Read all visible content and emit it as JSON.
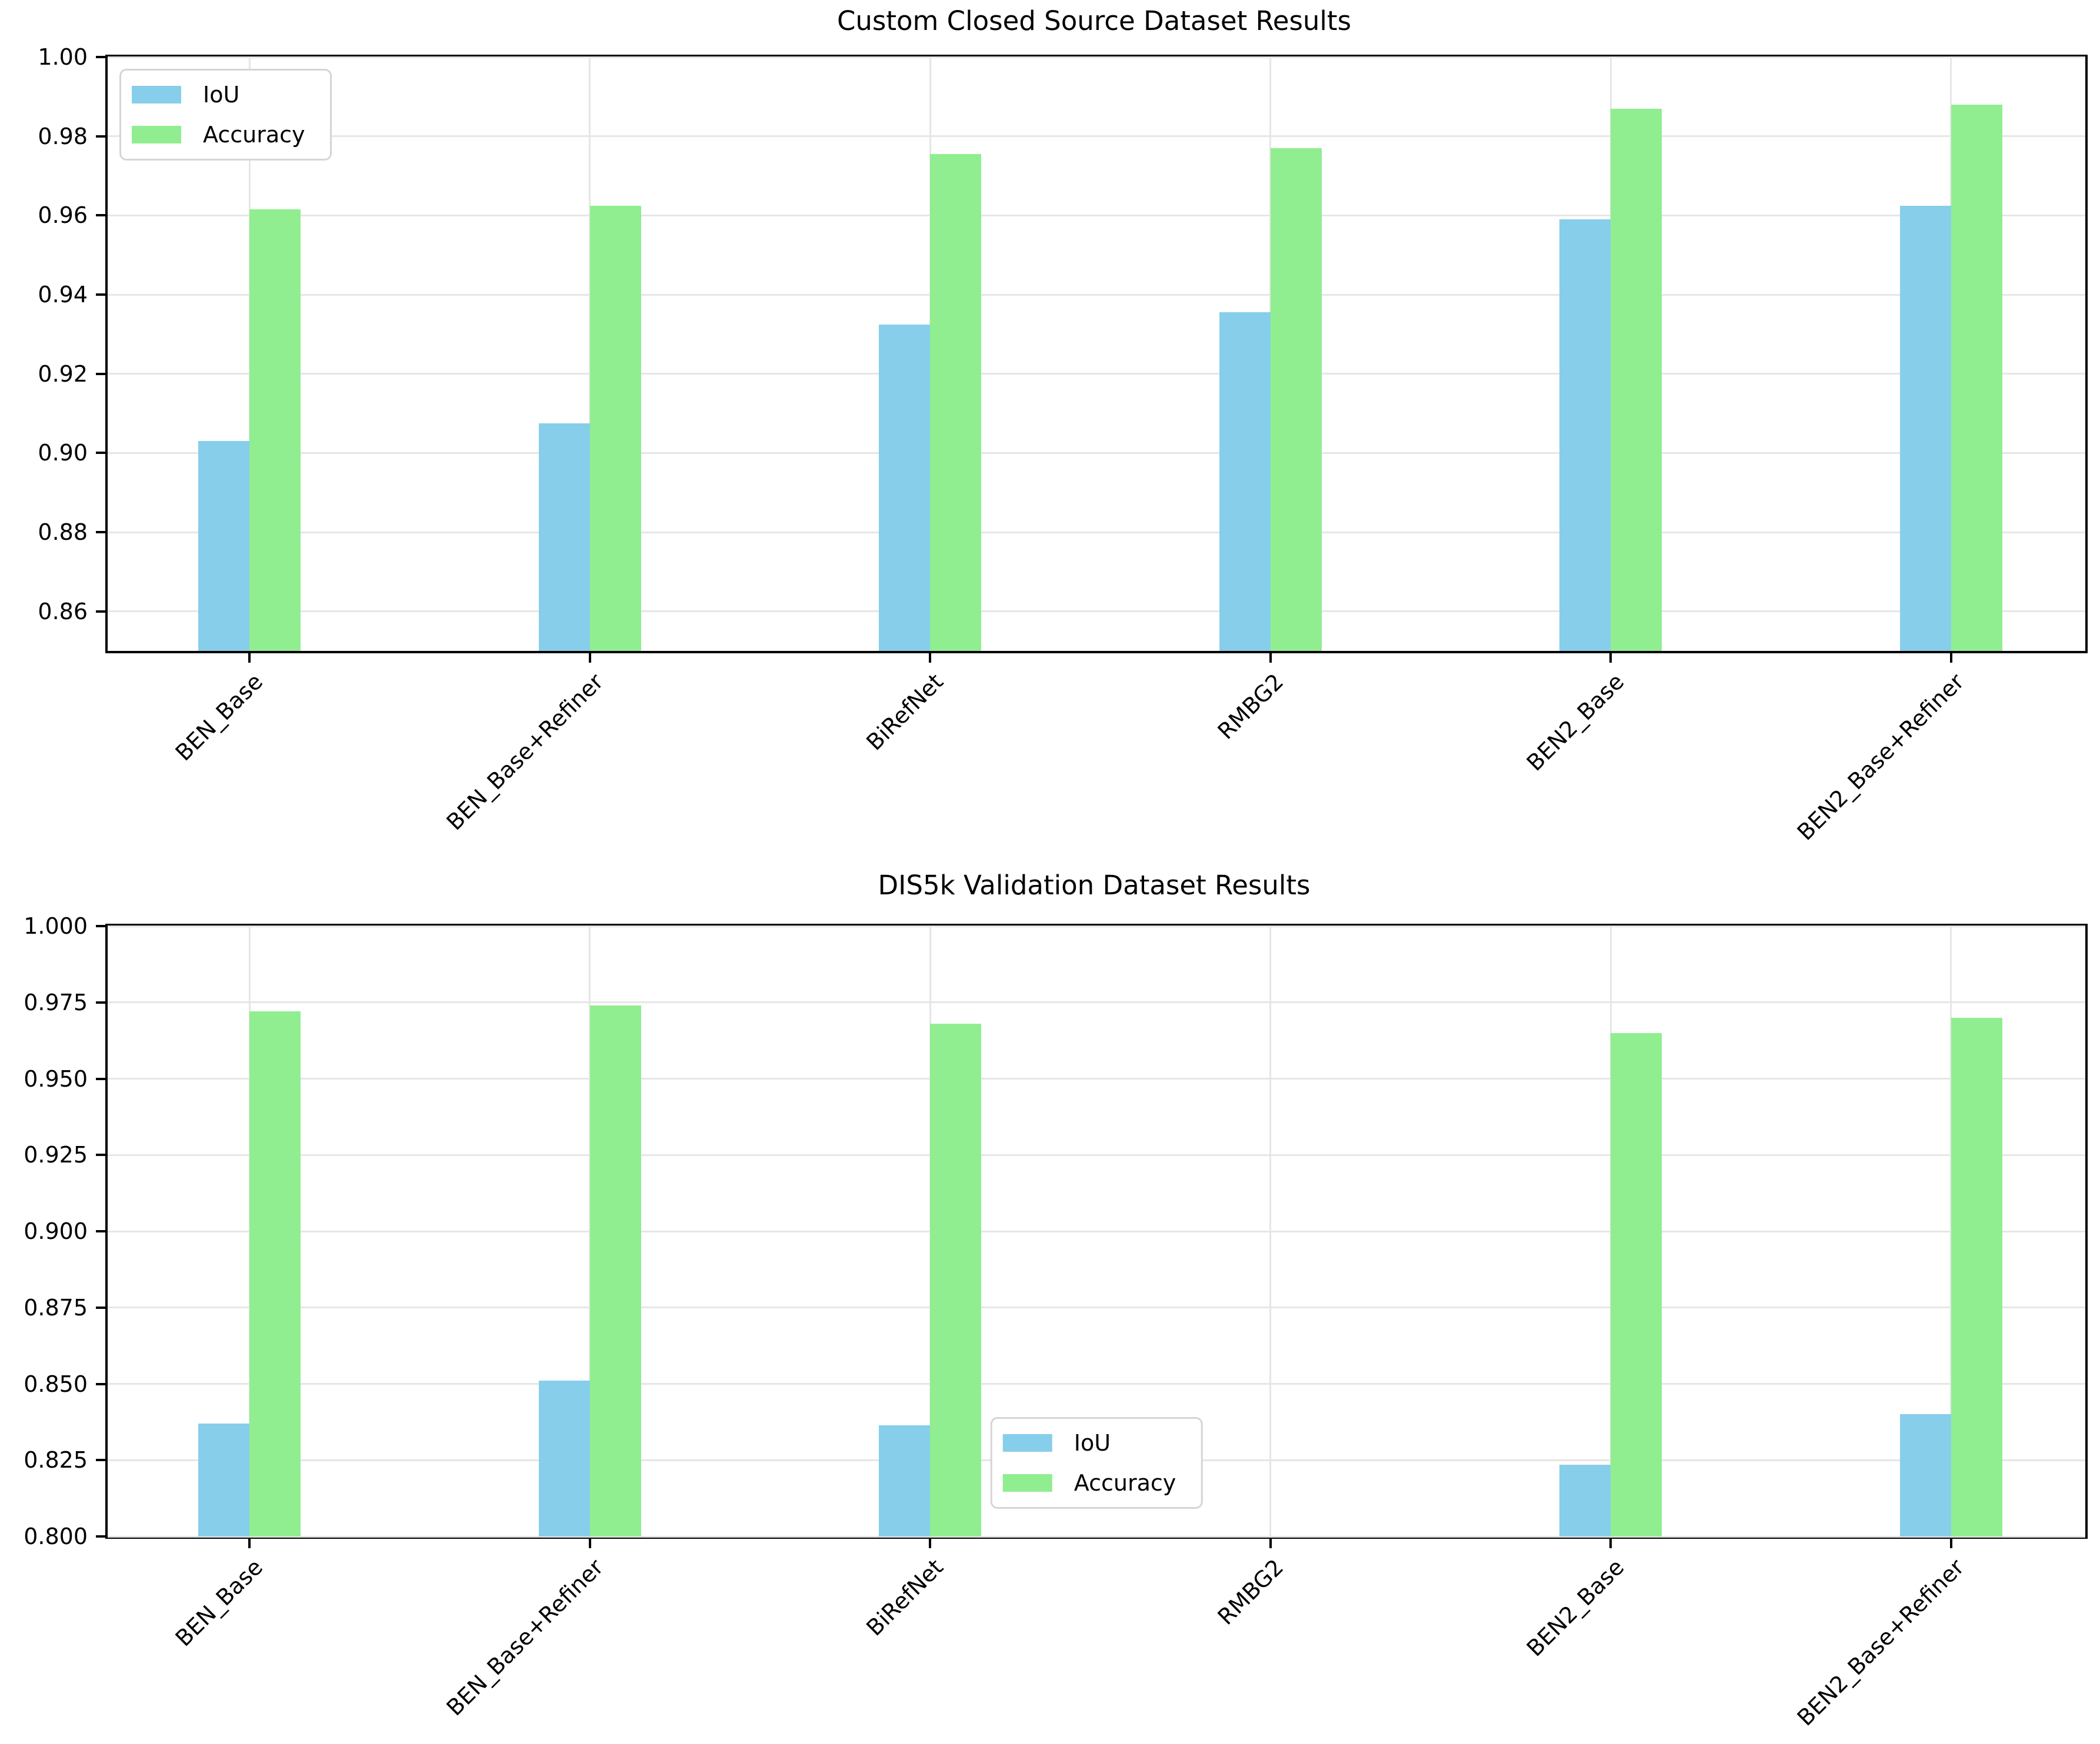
{
  "figure": {
    "background": "#ffffff",
    "text_color": "#000000",
    "grid_color": "#e6e6e6"
  },
  "legend": {
    "items": [
      {
        "label": "IoU",
        "color": "#87CEEB"
      },
      {
        "label": "Accuracy",
        "color": "#90EE90"
      }
    ]
  },
  "chart_data": [
    {
      "type": "bar",
      "title": "Custom Closed Source Dataset Results",
      "xlabel": "",
      "ylabel": "",
      "categories": [
        "BEN_Base",
        "BEN_Base+Refiner",
        "BiRefNet",
        "RMBG2",
        "BEN2_Base",
        "BEN2_Base+Refiner"
      ],
      "series": [
        {
          "name": "IoU",
          "color": "#87CEEB",
          "values": [
            0.903,
            0.9075,
            0.9325,
            0.9355,
            0.959,
            0.9625
          ]
        },
        {
          "name": "Accuracy",
          "color": "#90EE90",
          "values": [
            0.9615,
            0.9625,
            0.9755,
            0.977,
            0.987,
            0.988
          ]
        }
      ],
      "ylim": [
        0.85,
        1.0
      ],
      "yticks": {
        "values": [
          1.0,
          0.98,
          0.96,
          0.94,
          0.92,
          0.9,
          0.88,
          0.86
        ],
        "labels": [
          "1.00",
          "0.98",
          "0.96",
          "0.94",
          "0.92",
          "0.90",
          "0.88",
          "0.86"
        ]
      },
      "grid": "both",
      "legend_position": "upper left",
      "tick_label_rotation": 45
    },
    {
      "type": "bar",
      "title": "DIS5k Validation Dataset Results",
      "xlabel": "",
      "ylabel": "",
      "categories": [
        "BEN_Base",
        "BEN_Base+Refiner",
        "BiRefNet",
        "RMBG2",
        "BEN2_Base",
        "BEN2_Base+Refiner"
      ],
      "series": [
        {
          "name": "IoU",
          "color": "#87CEEB",
          "values": [
            0.837,
            0.851,
            0.8365,
            null,
            0.8235,
            0.84
          ]
        },
        {
          "name": "Accuracy",
          "color": "#90EE90",
          "values": [
            0.972,
            0.974,
            0.968,
            null,
            0.965,
            0.97
          ]
        }
      ],
      "ylim": [
        0.8,
        1.0
      ],
      "yticks": {
        "values": [
          1.0,
          0.975,
          0.95,
          0.925,
          0.9,
          0.875,
          0.85,
          0.825,
          0.8
        ],
        "labels": [
          "1.000",
          "0.975",
          "0.950",
          "0.925",
          "0.900",
          "0.875",
          "0.850",
          "0.825",
          "0.800"
        ]
      },
      "grid": "both",
      "legend_position": "lower center",
      "tick_label_rotation": 45
    }
  ]
}
